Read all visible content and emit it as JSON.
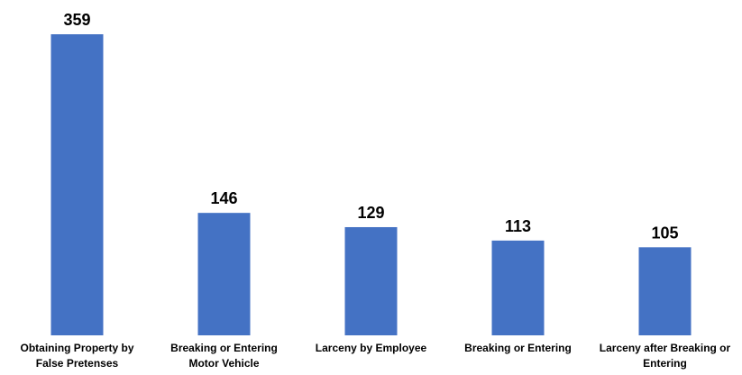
{
  "chart_data": {
    "type": "bar",
    "categories": [
      "Obtaining Property by False Pretenses",
      "Breaking or Entering Motor Vehicle",
      "Larceny by Employee",
      "Breaking or Entering",
      "Larceny after Breaking or Entering"
    ],
    "values": [
      359,
      146,
      129,
      113,
      105
    ],
    "color": "#4472c4"
  }
}
